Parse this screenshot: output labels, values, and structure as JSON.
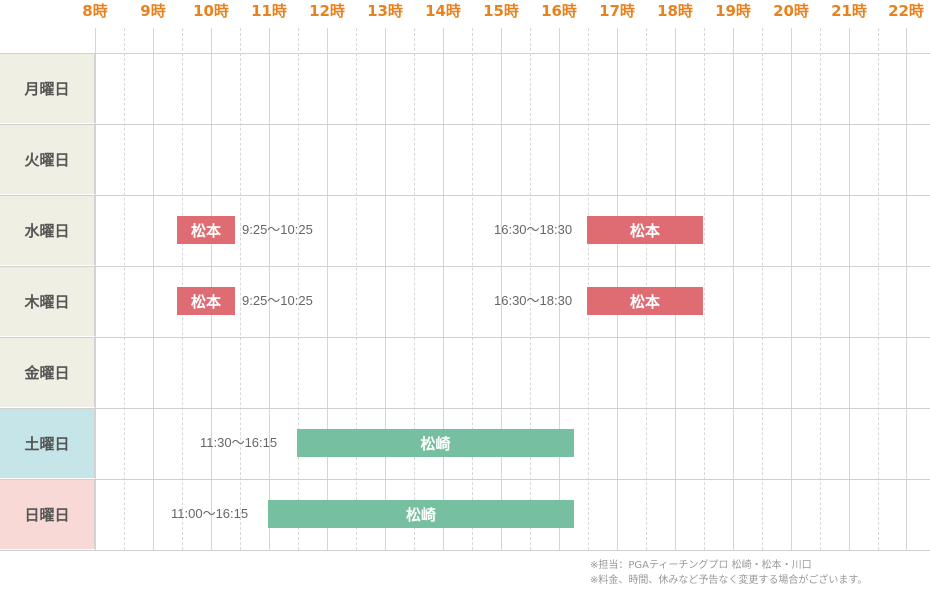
{
  "hours": [
    "8時",
    "9時",
    "10時",
    "11時",
    "12時",
    "13時",
    "14時",
    "15時",
    "16時",
    "17時",
    "18時",
    "19時",
    "20時",
    "21時",
    "22時"
  ],
  "days": [
    {
      "label": "月曜日",
      "bg": "#f0efe4"
    },
    {
      "label": "火曜日",
      "bg": "#f0efe4"
    },
    {
      "label": "水曜日",
      "bg": "#f0efe4"
    },
    {
      "label": "木曜日",
      "bg": "#f0efe4"
    },
    {
      "label": "金曜日",
      "bg": "#f0efe4"
    },
    {
      "label": "土曜日",
      "bg": "#c6e5e8"
    },
    {
      "label": "日曜日",
      "bg": "#f8d9d6"
    }
  ],
  "sessions": {
    "wed_am": {
      "instructor": "松本",
      "time": "9:25〜10:25"
    },
    "wed_pm": {
      "instructor": "松本",
      "time": "16:30〜18:30"
    },
    "thu_am": {
      "instructor": "松本",
      "time": "9:25〜10:25"
    },
    "thu_pm": {
      "instructor": "松本",
      "time": "16:30〜18:30"
    },
    "sat": {
      "instructor": "松崎",
      "time": "11:30〜16:15"
    },
    "sun": {
      "instructor": "松崎",
      "time": "11:00〜16:15"
    }
  },
  "notes": {
    "line1": "※担当：PGAティーチングプロ 松崎・松本・川口",
    "line2": "※料金、時間、休みなど予告なく変更する場合がございます。"
  },
  "colors": {
    "hour_text": "#e8821e",
    "instructor_red": "#e06c73",
    "instructor_green": "#76c0a1"
  }
}
